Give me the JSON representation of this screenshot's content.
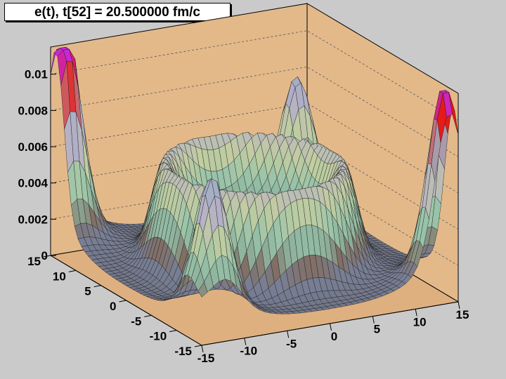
{
  "chart_data": {
    "type": "surface",
    "title": "e(t), t[52] = 20.500000 fm/c",
    "xlabel": "",
    "ylabel": "",
    "zlabel": "",
    "xlim": [
      -15,
      15
    ],
    "ylim": [
      -15,
      15
    ],
    "zlim": [
      0,
      0.0115
    ],
    "x_ticks": [
      "-15",
      "-10",
      "-5",
      "0",
      "5",
      "10",
      "15"
    ],
    "y_ticks": [
      "-15",
      "-10",
      "-5",
      "0",
      "5",
      "10",
      "15"
    ],
    "z_ticks": [
      "0",
      "0.002",
      "0.004",
      "0.006",
      "0.008",
      "0.01"
    ],
    "peaks": [
      {
        "x": -14,
        "y": 14,
        "z": 0.0109
      },
      {
        "x": 14,
        "y": -14,
        "z": 0.0098
      },
      {
        "x": -12,
        "y": -12,
        "z": 0.0068
      },
      {
        "x": 12,
        "y": 12,
        "z": 0.0064
      }
    ],
    "ring": {
      "radius": 9,
      "height": 0.0034,
      "inner_floor": 0.0022
    },
    "corner_value": 0.004,
    "grid": true,
    "colors": {
      "background": "#cacaca",
      "frame": "#e3b98a",
      "floor": "#deb080"
    }
  }
}
